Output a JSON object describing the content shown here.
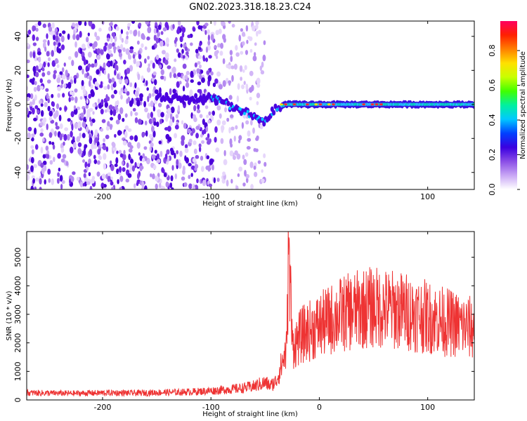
{
  "title": "GN02.2023.318.18.23.C24",
  "chart_data": [
    {
      "type": "heatmap",
      "xlabel": "Height of straight line (km)",
      "ylabel": "Frequency (Hz)",
      "xlim": [
        -270,
        143
      ],
      "ylim": [
        -50,
        49
      ],
      "xticks": [
        -200,
        -100,
        0,
        100
      ],
      "yticks": [
        -40,
        -20,
        0,
        20,
        40
      ],
      "grid": false,
      "colorbar": {
        "label": "Normalized spectral amplitude",
        "range": [
          0.0,
          0.97
        ],
        "ticks": [
          0.0,
          0.2,
          0.4,
          0.6,
          0.8
        ],
        "colors": [
          "#ffffff",
          "#c9a7f5",
          "#8a4de6",
          "#3a00e0",
          "#0040ff",
          "#00c8ff",
          "#00f0a0",
          "#40ff00",
          "#c8ff00",
          "#ffe000",
          "#ff8000",
          "#ff2000",
          "#ff0060"
        ]
      },
      "features": {
        "noise_region_x": [
          -270,
          -50
        ],
        "dense_noise_x": [
          -270,
          -95
        ],
        "signal_track": [
          {
            "x": -150,
            "f": 4
          },
          {
            "x": -120,
            "f": 3
          },
          {
            "x": -100,
            "f": 4
          },
          {
            "x": -90,
            "f": 2
          },
          {
            "x": -80,
            "f": -2
          },
          {
            "x": -70,
            "f": -4
          },
          {
            "x": -60,
            "f": -8
          },
          {
            "x": -50,
            "f": -10
          },
          {
            "x": -45,
            "f": -6
          },
          {
            "x": -40,
            "f": -2
          },
          {
            "x": -30,
            "f": 0
          },
          {
            "x": 0,
            "f": 0
          },
          {
            "x": 50,
            "f": 0
          },
          {
            "x": 100,
            "f": 0
          },
          {
            "x": 143,
            "f": 0
          }
        ]
      }
    },
    {
      "type": "line",
      "xlabel": "Height of straight line (km)",
      "ylabel": "SNR (10 * v/v)",
      "xlim": [
        -270,
        143
      ],
      "ylim": [
        0,
        5900
      ],
      "xticks": [
        -200,
        -100,
        0,
        100
      ],
      "yticks": [
        0,
        1000,
        2000,
        3000,
        4000,
        5000
      ],
      "grid": false,
      "color": "#ee3333",
      "series": [
        {
          "x": [
            -270,
            -250,
            -230,
            -210,
            -190,
            -170,
            -150,
            -130,
            -110,
            -100,
            -90,
            -80,
            -70,
            -60,
            -55,
            -50,
            -45,
            -40,
            -35,
            -30,
            -28,
            -25,
            -22,
            -20,
            -15,
            -10,
            -5,
            0,
            10,
            20,
            30,
            40,
            50,
            60,
            70,
            80,
            90,
            100,
            110,
            120,
            130,
            143
          ],
          "values": [
            250,
            240,
            230,
            240,
            250,
            240,
            260,
            270,
            300,
            320,
            350,
            380,
            420,
            480,
            550,
            600,
            500,
            650,
            1200,
            1800,
            5900,
            1900,
            2000,
            2100,
            2300,
            2400,
            2500,
            2600,
            2800,
            3000,
            3100,
            3200,
            3250,
            3200,
            3150,
            3100,
            3000,
            2900,
            2800,
            2700,
            2600,
            2500
          ]
        }
      ]
    }
  ]
}
